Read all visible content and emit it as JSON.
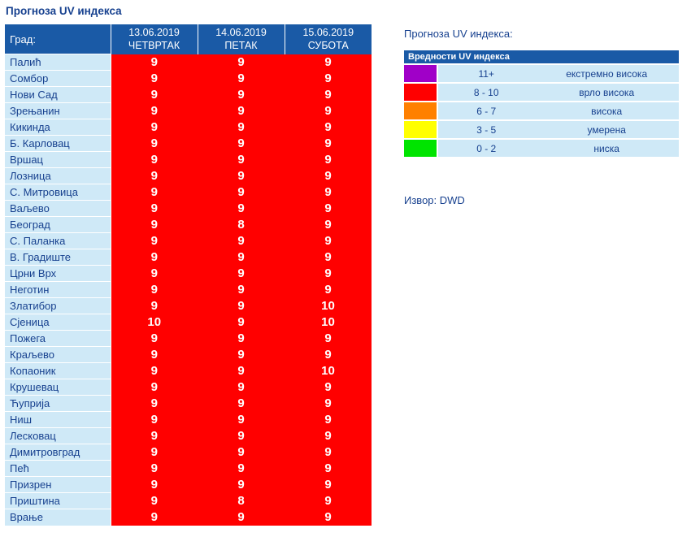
{
  "page": {
    "title": "Прогноза UV индекса"
  },
  "table": {
    "city_header": "Град:",
    "days": [
      {
        "date": "13.06.2019",
        "day": "ЧЕТВРТАК"
      },
      {
        "date": "14.06.2019",
        "day": "ПЕТАК"
      },
      {
        "date": "15.06.2019",
        "day": "СУБОТА"
      }
    ],
    "rows": [
      {
        "city": "Палић",
        "values": [
          "9",
          "9",
          "9"
        ]
      },
      {
        "city": "Сомбор",
        "values": [
          "9",
          "9",
          "9"
        ]
      },
      {
        "city": "Нови Сад",
        "values": [
          "9",
          "9",
          "9"
        ]
      },
      {
        "city": "Зрењанин",
        "values": [
          "9",
          "9",
          "9"
        ]
      },
      {
        "city": "Кикинда",
        "values": [
          "9",
          "9",
          "9"
        ]
      },
      {
        "city": "Б. Карловац",
        "values": [
          "9",
          "9",
          "9"
        ]
      },
      {
        "city": "Вршац",
        "values": [
          "9",
          "9",
          "9"
        ]
      },
      {
        "city": "Лозница",
        "values": [
          "9",
          "9",
          "9"
        ]
      },
      {
        "city": "С. Митровица",
        "values": [
          "9",
          "9",
          "9"
        ]
      },
      {
        "city": "Ваљево",
        "values": [
          "9",
          "9",
          "9"
        ]
      },
      {
        "city": "Београд",
        "values": [
          "9",
          "8",
          "9"
        ]
      },
      {
        "city": "С. Паланка",
        "values": [
          "9",
          "9",
          "9"
        ]
      },
      {
        "city": "В. Градиште",
        "values": [
          "9",
          "9",
          "9"
        ]
      },
      {
        "city": "Црни Врх",
        "values": [
          "9",
          "9",
          "9"
        ]
      },
      {
        "city": "Неготин",
        "values": [
          "9",
          "9",
          "9"
        ]
      },
      {
        "city": "Златибор",
        "values": [
          "9",
          "9",
          "10"
        ]
      },
      {
        "city": "Сјеница",
        "values": [
          "10",
          "9",
          "10"
        ]
      },
      {
        "city": "Пожега",
        "values": [
          "9",
          "9",
          "9"
        ]
      },
      {
        "city": "Краљево",
        "values": [
          "9",
          "9",
          "9"
        ]
      },
      {
        "city": "Копаоник",
        "values": [
          "9",
          "9",
          "10"
        ]
      },
      {
        "city": "Крушевац",
        "values": [
          "9",
          "9",
          "9"
        ]
      },
      {
        "city": "Ћуприја",
        "values": [
          "9",
          "9",
          "9"
        ]
      },
      {
        "city": "Ниш",
        "values": [
          "9",
          "9",
          "9"
        ]
      },
      {
        "city": "Лесковац",
        "values": [
          "9",
          "9",
          "9"
        ]
      },
      {
        "city": "Димитровград",
        "values": [
          "9",
          "9",
          "9"
        ]
      },
      {
        "city": "Пећ",
        "values": [
          "9",
          "9",
          "9"
        ]
      },
      {
        "city": "Призрен",
        "values": [
          "9",
          "9",
          "9"
        ]
      },
      {
        "city": "Приштина",
        "values": [
          "9",
          "8",
          "9"
        ]
      },
      {
        "city": "Врање",
        "values": [
          "9",
          "9",
          "9"
        ]
      }
    ]
  },
  "sidebar": {
    "title": "Прогноза UV индекса:",
    "legend": {
      "header": "Вредности UV индекса",
      "items": [
        {
          "range": "11+",
          "label": "екстремно висока",
          "color": "#a000c8"
        },
        {
          "range": "8 - 10",
          "label": "врло висока",
          "color": "#ff0000"
        },
        {
          "range": "6 - 7",
          "label": "висока",
          "color": "#ff8000"
        },
        {
          "range": "3 - 5",
          "label": "умерена",
          "color": "#ffff00"
        },
        {
          "range": "0 - 2",
          "label": "ниска",
          "color": "#00e400"
        }
      ]
    },
    "source": "Извор: DWD"
  },
  "colors": {
    "header_bg": "#1a5aa6",
    "row_bg": "#cfe9f7",
    "uv_cell_bg": "#ff0000",
    "text": "#17418f"
  }
}
